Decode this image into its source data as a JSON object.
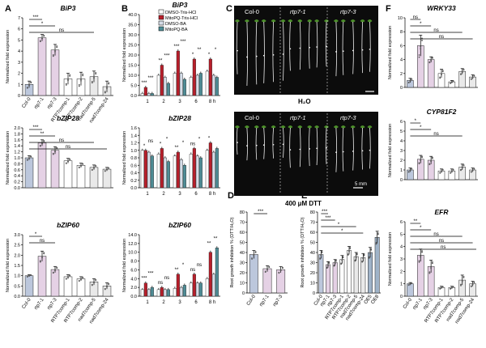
{
  "colors": {
    "col0": "#bcc7dc",
    "mut": "#e5d1e5",
    "comp": "#ffffff",
    "nad": "#e9e9e9",
    "oe": "#9fb3c8",
    "dmso_tris": "#ffffff",
    "mitopq_tris": "#b81f2b",
    "dmso_ba": "#d6dde8",
    "mitopq_ba": "#4f8d96"
  },
  "legend": {
    "items": [
      "DMSO-Tris-HCl",
      "MitoPQ-Tris-HCl",
      "DMSO-BA",
      "MitoPQ-BA"
    ]
  },
  "photo": {
    "top_labels": [
      "Col-0",
      "rtp7-1",
      "rtp7-3"
    ],
    "bottom_labels": [
      "Col-0",
      "rtp7-1",
      "rtp7-3"
    ],
    "condition_top": "H₂O",
    "condition_bottom": "400 μM DTT",
    "scale_bar": "5 mm"
  },
  "chart_data": [
    {
      "panel": "A",
      "type": "bar",
      "title": "BiP3",
      "ylabel": "Normalized fold expression",
      "ylim": [
        0,
        7
      ],
      "yticks": [
        0,
        1,
        2,
        3,
        4,
        5,
        6,
        7
      ],
      "y_tick_labels": [
        "0",
        "1",
        "2",
        "3",
        "4",
        "5",
        "6",
        "7"
      ],
      "categories": [
        "Col-0",
        "rtp7-1",
        "rtp7-3",
        "RTP7comp-1",
        "RTP7comp-2",
        "nad7comp-5",
        "nad7comp-24"
      ],
      "values": [
        1.0,
        5.2,
        4.1,
        1.5,
        1.5,
        1.7,
        0.8
      ],
      "errors": [
        0.3,
        0.3,
        0.5,
        0.5,
        0.6,
        0.5,
        0.5
      ],
      "groups": [
        "col0",
        "mut",
        "mut",
        "comp",
        "comp",
        "nad",
        "nad"
      ],
      "significance": [
        "***",
        "*",
        "ns"
      ]
    },
    {
      "panel": "A2",
      "type": "bar",
      "title": "bZIP28",
      "ylabel": "Normalized fold expression",
      "ylim": [
        0,
        2.0
      ],
      "yticks": [
        0,
        0.2,
        0.4,
        0.6,
        0.8,
        1.0,
        1.2,
        1.4,
        1.6,
        1.8,
        2.0
      ],
      "y_tick_labels": [
        "0.0",
        "0.2",
        "0.4",
        "0.6",
        "0.8",
        "1.0",
        "1.2",
        "1.4",
        "1.6",
        "1.8",
        "2.0"
      ],
      "categories": [
        "Col-0",
        "rtp7-1",
        "rtp7-3",
        "RTP7comp-1",
        "RTP7comp-2",
        "nad7comp-5",
        "nad7comp-24"
      ],
      "values": [
        1.0,
        1.5,
        1.25,
        0.9,
        0.75,
        0.68,
        0.62
      ],
      "errors": [
        0.07,
        0.1,
        0.12,
        0.08,
        0.07,
        0.08,
        0.06
      ],
      "groups": [
        "col0",
        "mut",
        "mut",
        "comp",
        "comp",
        "nad",
        "nad"
      ],
      "significance": [
        "***",
        "**",
        "ns",
        "ns"
      ]
    },
    {
      "panel": "A3",
      "type": "bar",
      "title": "bZIP60",
      "ylabel": "Normalized fold expression",
      "ylim": [
        0,
        3.0
      ],
      "yticks": [
        0,
        0.5,
        1.0,
        1.5,
        2.0,
        2.5,
        3.0
      ],
      "y_tick_labels": [
        "0.0",
        "0.5",
        "1.0",
        "1.5",
        "2.0",
        "2.5",
        "3.0"
      ],
      "categories": [
        "Col-0",
        "rtp7-1",
        "rtp7-3",
        "RTP7comp-1",
        "RTP7comp-2",
        "nad7comp-5",
        "nad7comp-24"
      ],
      "values": [
        1.0,
        1.95,
        1.3,
        0.95,
        0.85,
        0.7,
        0.5
      ],
      "errors": [
        0.05,
        0.25,
        0.15,
        0.1,
        0.1,
        0.15,
        0.15
      ],
      "groups": [
        "col0",
        "mut",
        "mut",
        "comp",
        "comp",
        "nad",
        "nad"
      ],
      "significance": [
        "*",
        "ns"
      ]
    },
    {
      "panel": "B",
      "type": "bar",
      "title": "BiP3",
      "ylabel": "Normalized fold expression",
      "ylim": [
        0,
        40
      ],
      "yticks": [
        0,
        5,
        10,
        15,
        20,
        25,
        30,
        35,
        40
      ],
      "y_tick_labels": [
        "0.0",
        "5.0",
        "10.0",
        "15.0",
        "20.0",
        "25.0",
        "30.0",
        "35.0",
        "40.0"
      ],
      "categories": [
        "1",
        "2",
        "3",
        "6",
        "8 h"
      ],
      "series": [
        {
          "name": "DMSO-Tris-HCl",
          "color": "dmso_tris",
          "values": [
            1,
            10,
            11,
            9,
            12
          ]
        },
        {
          "name": "MitoPQ-Tris-HCl",
          "color": "mitopq_tris",
          "values": [
            4,
            15,
            22,
            18,
            18
          ]
        },
        {
          "name": "DMSO-BA",
          "color": "dmso_ba",
          "values": [
            1,
            9,
            11,
            10,
            10
          ]
        },
        {
          "name": "MitoPQ-BA",
          "color": "mitopq_ba",
          "values": [
            1,
            6,
            8,
            11,
            9
          ]
        }
      ],
      "significance": [
        "***",
        "***",
        "**",
        "***",
        "***",
        "***",
        "*",
        "**",
        "*",
        "*"
      ]
    },
    {
      "panel": "B2",
      "type": "bar",
      "title": "bZIP28",
      "ylabel": "Normalized fold expression",
      "ylim": [
        0,
        1.6
      ],
      "yticks": [
        0,
        0.2,
        0.4,
        0.6,
        0.8,
        1.0,
        1.2,
        1.4,
        1.6
      ],
      "y_tick_labels": [
        "0.0",
        "0.2",
        "0.4",
        "0.6",
        "0.8",
        "1.0",
        "1.2",
        "1.4",
        "1.6"
      ],
      "categories": [
        "1",
        "2",
        "3",
        "6",
        "8 h"
      ],
      "series": [
        {
          "name": "DMSO-Tris-HCl",
          "color": "dmso_tris",
          "values": [
            1.0,
            0.9,
            0.85,
            0.9,
            1.0
          ]
        },
        {
          "name": "MitoPQ-Tris-HCl",
          "color": "mitopq_tris",
          "values": [
            1.0,
            1.05,
            0.95,
            1.05,
            1.2
          ]
        },
        {
          "name": "DMSO-BA",
          "color": "dmso_ba",
          "values": [
            0.95,
            0.8,
            0.75,
            0.85,
            0.95
          ]
        },
        {
          "name": "MitoPQ-BA",
          "color": "mitopq_ba",
          "values": [
            0.85,
            0.7,
            0.6,
            0.8,
            1.05
          ]
        }
      ],
      "significance": [
        "*",
        "ns",
        "*",
        "*",
        "**",
        "*",
        "ns",
        "*",
        "*"
      ]
    },
    {
      "panel": "B3",
      "type": "bar",
      "title": "bZIP60",
      "ylabel": "Normalized fold expression",
      "ylim": [
        0,
        14
      ],
      "yticks": [
        0,
        2,
        4,
        6,
        8,
        10,
        12,
        14
      ],
      "y_tick_labels": [
        "0.0",
        "2.0",
        "4.0",
        "6.0",
        "8.0",
        "10.0",
        "12.0",
        "14.0"
      ],
      "categories": [
        "1",
        "2",
        "3",
        "6",
        "8 h"
      ],
      "series": [
        {
          "name": "DMSO-Tris-HCl",
          "color": "dmso_tris",
          "values": [
            1.5,
            1.5,
            1.8,
            3,
            4
          ]
        },
        {
          "name": "MitoPQ-Tris-HCl",
          "color": "mitopq_tris",
          "values": [
            3,
            2,
            5,
            5,
            10
          ]
        },
        {
          "name": "DMSO-BA",
          "color": "dmso_ba",
          "values": [
            1.5,
            1.5,
            2,
            3,
            5
          ]
        },
        {
          "name": "MitoPQ-BA",
          "color": "mitopq_ba",
          "values": [
            2,
            1.5,
            2.5,
            3,
            11
          ]
        }
      ],
      "significance": [
        "***",
        "***",
        "ns",
        "ns",
        "**",
        "*",
        "ns",
        "ns",
        "**",
        "**"
      ]
    },
    {
      "panel": "D",
      "type": "bar",
      "title": "",
      "ylabel": "Root growth inhibition % (DTT/H₂O)",
      "ylim": [
        0,
        80
      ],
      "yticks": [
        0,
        10,
        20,
        30,
        40,
        50,
        60,
        70,
        80
      ],
      "y_tick_labels": [
        "0",
        "10",
        "20",
        "30",
        "40",
        "50",
        "60",
        "70",
        "80"
      ],
      "categories": [
        "Col-0",
        "rtp7-1",
        "rtp7-3"
      ],
      "values": [
        38,
        24,
        23
      ],
      "errors": [
        4,
        3,
        3
      ],
      "groups": [
        "col0",
        "mut",
        "mut"
      ],
      "significance": [
        "***"
      ]
    },
    {
      "panel": "E",
      "type": "bar",
      "title": "",
      "ylabel": "Root growth inhibition % (DTT/H₂O)",
      "ylim": [
        0,
        80
      ],
      "yticks": [
        0,
        10,
        20,
        30,
        40,
        50,
        60,
        70,
        80
      ],
      "y_tick_labels": [
        "0",
        "10",
        "20",
        "30",
        "40",
        "50",
        "60",
        "70",
        "80"
      ],
      "categories": [
        "Col-0",
        "rtp7-1",
        "rtp7-3",
        "RTP7comp-1",
        "RTP7comp-2",
        "nad7comp-5",
        "nad7comp-24",
        "OE5",
        "OE8"
      ],
      "values": [
        38,
        28,
        30,
        33,
        42,
        36,
        35,
        40,
        55
      ],
      "errors": [
        4,
        3,
        3,
        4,
        4,
        4,
        4,
        5,
        6
      ],
      "groups": [
        "col0",
        "mut",
        "mut",
        "comp",
        "comp",
        "nad",
        "nad",
        "oe",
        "oe"
      ],
      "significance": [
        "***",
        "***",
        "*",
        "*"
      ]
    },
    {
      "panel": "F",
      "type": "bar",
      "title": "WRKY33",
      "ylabel": "Normalized fold expression",
      "ylim": [
        0,
        10
      ],
      "yticks": [
        0,
        2,
        4,
        6,
        8,
        10
      ],
      "y_tick_labels": [
        "0",
        "2",
        "4",
        "6",
        "8",
        "10"
      ],
      "categories": [
        "Col-0",
        "rtp7-1",
        "rtp7-3",
        "RTP7comp-1",
        "RTP7comp-2",
        "nad7comp-5",
        "nad7comp-24"
      ],
      "values": [
        1.0,
        6.0,
        4.0,
        2.0,
        0.8,
        2.3,
        1.5
      ],
      "errors": [
        0.3,
        1.5,
        0.4,
        0.6,
        0.2,
        0.4,
        0.3
      ],
      "groups": [
        "col0",
        "mut",
        "mut",
        "comp",
        "comp",
        "nad",
        "nad"
      ],
      "significance": [
        "ns",
        "*",
        "ns",
        "ns"
      ]
    },
    {
      "panel": "F2",
      "type": "bar",
      "title": "CYP81F2",
      "ylabel": "Normalized fold expression",
      "ylim": [
        0,
        6
      ],
      "yticks": [
        0,
        1,
        2,
        3,
        4,
        5,
        6
      ],
      "y_tick_labels": [
        "0",
        "1",
        "2",
        "3",
        "4",
        "5",
        "6"
      ],
      "categories": [
        "Col-0",
        "rtp7-1",
        "rtp7-3",
        "RTP7comp-1",
        "RTP7comp-2",
        "nad7comp-5",
        "nad7comp-24"
      ],
      "values": [
        1.0,
        2.1,
        2.0,
        0.9,
        0.9,
        1.3,
        1.0
      ],
      "errors": [
        0.2,
        0.4,
        0.4,
        0.2,
        0.2,
        0.3,
        0.2
      ],
      "groups": [
        "col0",
        "mut",
        "mut",
        "comp",
        "comp",
        "nad",
        "nad"
      ],
      "significance": [
        "*",
        "*",
        "ns"
      ]
    },
    {
      "panel": "F3",
      "type": "bar",
      "title": "EFR",
      "ylabel": "Normalized fold expression",
      "ylim": [
        0,
        6
      ],
      "yticks": [
        0,
        1,
        2,
        3,
        4,
        5,
        6
      ],
      "y_tick_labels": [
        "0",
        "1",
        "2",
        "3",
        "4",
        "5",
        "6"
      ],
      "categories": [
        "Col-0",
        "rtp7-1",
        "rtp7-3",
        "RTP7comp-1",
        "RTP7comp-2",
        "nad7comp-5",
        "nad7comp-24"
      ],
      "values": [
        1.0,
        3.3,
        2.4,
        0.7,
        0.7,
        1.3,
        1.0
      ],
      "errors": [
        0.1,
        0.5,
        0.5,
        0.1,
        0.1,
        0.4,
        0.2
      ],
      "groups": [
        "col0",
        "mut",
        "mut",
        "comp",
        "comp",
        "nad",
        "nad"
      ],
      "significance": [
        "**",
        "*",
        "ns",
        "ns",
        "ns"
      ]
    }
  ]
}
